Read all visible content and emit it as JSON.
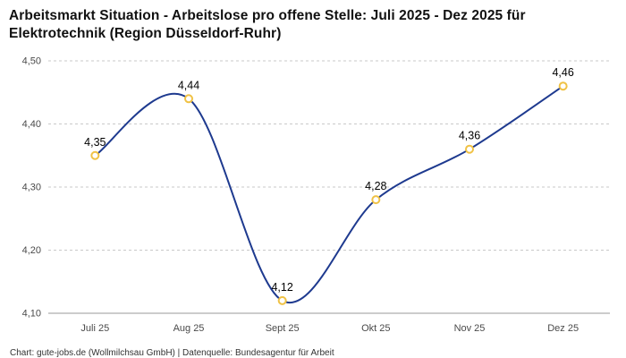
{
  "header": {
    "title": "Arbeitsmarkt Situation - Arbeitslose pro offene Stelle: Juli 2025 - Dez 2025 für Elektrotechnik (Region Düsseldorf-Ruhr)"
  },
  "footer": {
    "credit": "Chart: gute-jobs.de (Wollmilchsau GmbH) | Datenquelle: Bundesagentur für Arbeit"
  },
  "chart_data": {
    "type": "line",
    "title": "Arbeitsmarkt Situation - Arbeitslose pro offene Stelle: Juli 2025 - Dez 2025 für Elektrotechnik (Region Düsseldorf-Ruhr)",
    "categories": [
      "Juli 25",
      "Aug 25",
      "Sept 25",
      "Okt 25",
      "Nov 25",
      "Dez 25"
    ],
    "values": [
      4.35,
      4.44,
      4.12,
      4.28,
      4.36,
      4.46
    ],
    "value_labels": [
      "4,35",
      "4,44",
      "4,12",
      "4,28",
      "4,36",
      "4,46"
    ],
    "xlabel": "",
    "ylabel": "",
    "ylim": [
      4.1,
      4.5
    ],
    "yticks": [
      {
        "v": 4.1,
        "label": "4,10"
      },
      {
        "v": 4.2,
        "label": "4,20"
      },
      {
        "v": 4.3,
        "label": "4,30"
      },
      {
        "v": 4.4,
        "label": "4,40"
      },
      {
        "v": 4.5,
        "label": "4,50"
      }
    ],
    "grid": "horizontal-dashed",
    "legend": "none",
    "colors": {
      "line": "#1e3a8f",
      "marker_fill": "#ffffff",
      "marker_stroke": "#f0c245",
      "gridline": "#c9c9c9",
      "axis_line": "#9a9a9a",
      "tick_text": "#4a4a4a",
      "value_text": "#000000"
    }
  }
}
